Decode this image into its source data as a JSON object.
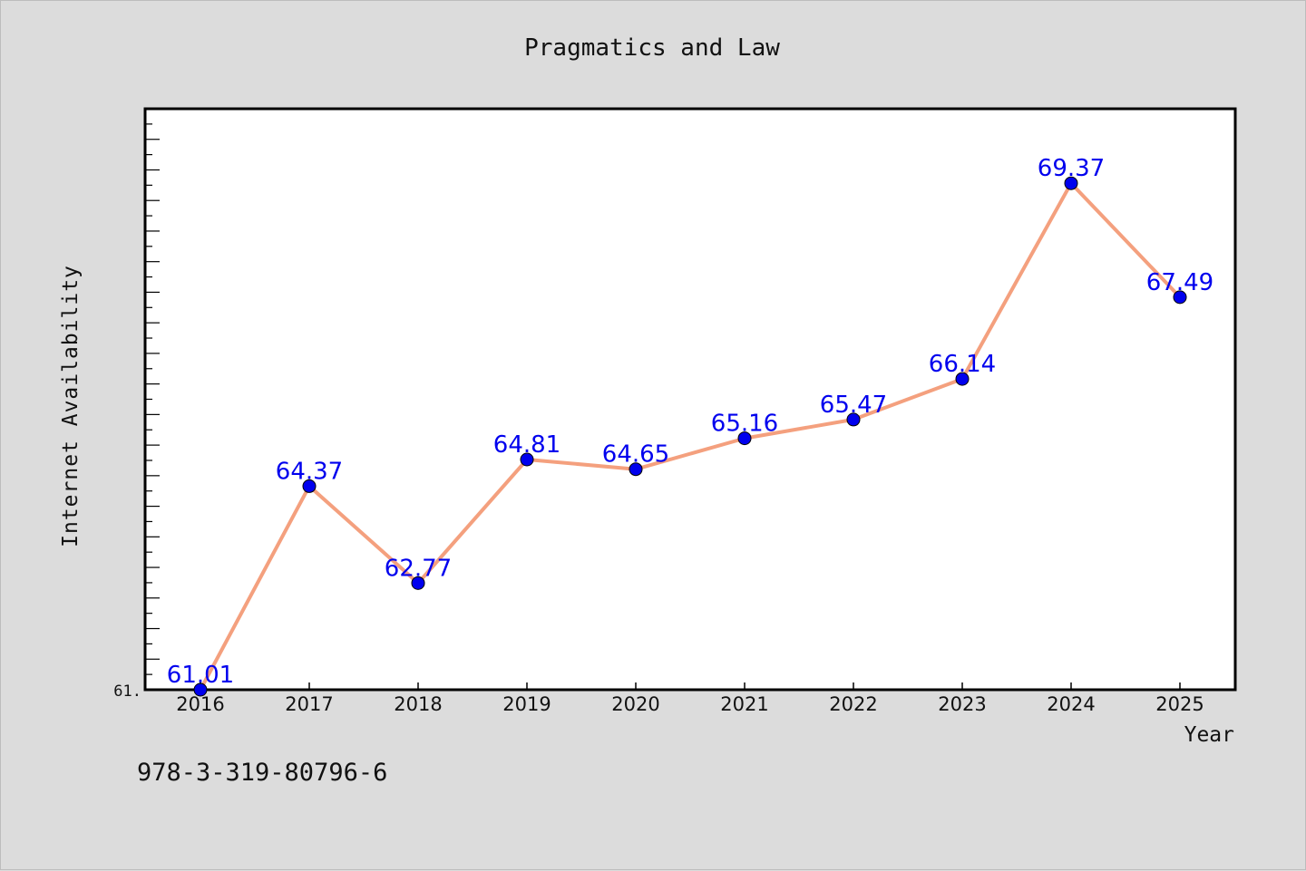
{
  "chart_data": {
    "type": "line",
    "title": "Pragmatics and Law",
    "xlabel": "Year",
    "ylabel": "Internet Availability",
    "x": [
      "2016",
      "2017",
      "2018",
      "2019",
      "2020",
      "2021",
      "2022",
      "2023",
      "2024",
      "2025"
    ],
    "series": [
      {
        "values": [
          61.01,
          64.37,
          62.77,
          64.81,
          64.65,
          65.16,
          65.47,
          66.14,
          69.37,
          67.49
        ],
        "labels": [
          "61.01",
          "64.37",
          "62.77",
          "64.81",
          "64.65",
          "65.16",
          "65.47",
          "66.14",
          "69.37",
          "67.49"
        ],
        "line_color": "#f4a07e",
        "marker_color": "#0000ee",
        "label_color": "#0000ee"
      }
    ],
    "ylim": [
      61.01,
      70.6
    ],
    "y_tick_labels": [
      "61."
    ],
    "grid": false,
    "legend": "none"
  },
  "footer": {
    "isbn": "978-3-319-80796-6"
  },
  "colors": {
    "background": "#dcdcdc",
    "plot_background": "#ffffff",
    "axis": "#000000"
  }
}
